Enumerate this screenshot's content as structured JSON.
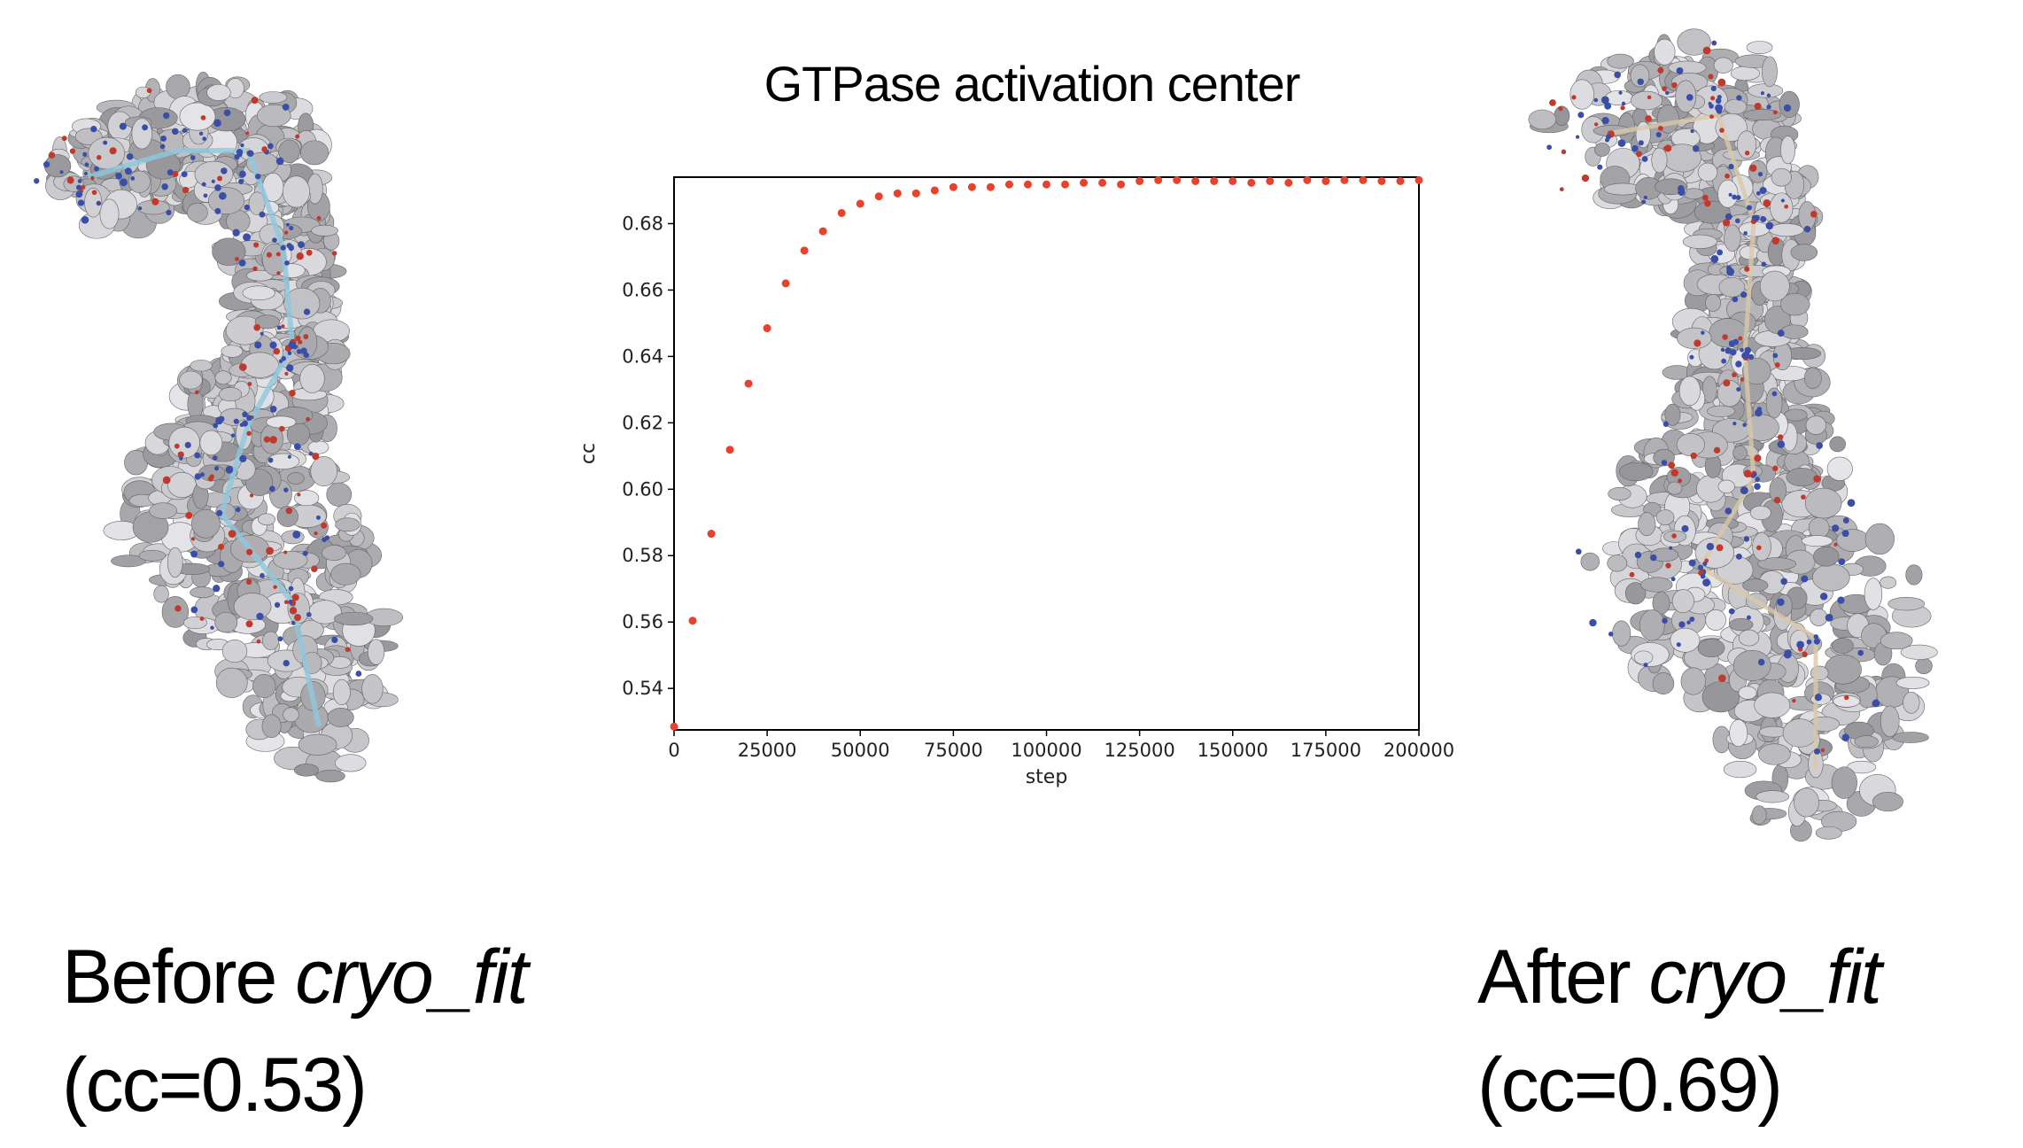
{
  "title": "GTPase activation center",
  "left_panel": {
    "caption_prefix": "Before ",
    "caption_italic": "cryo_fit",
    "cc_label": "(cc=0.53)"
  },
  "right_panel": {
    "caption_prefix": "After ",
    "caption_italic": "cryo_fit",
    "cc_label": "(cc=0.69)"
  },
  "colors": {
    "marker": "#e8412c",
    "map_surface": "#b8b8b8",
    "ribbon_before": "#8ec8de",
    "ribbon_after": "#d8c8a8"
  },
  "chart_data": {
    "type": "scatter",
    "title": "",
    "xlabel": "step",
    "ylabel": "cc",
    "xlim": [
      0,
      200000
    ],
    "ylim": [
      0.5275,
      0.694
    ],
    "xticks": [
      "0",
      "25000",
      "50000",
      "75000",
      "100000",
      "125000",
      "150000",
      "175000",
      "200000"
    ],
    "yticks": [
      "0.54",
      "0.56",
      "0.58",
      "0.60",
      "0.62",
      "0.64",
      "0.66",
      "0.68"
    ],
    "grid": false,
    "x": [
      0,
      5000,
      10000,
      15000,
      20000,
      25000,
      30000,
      35000,
      40000,
      45000,
      50000,
      55000,
      60000,
      65000,
      70000,
      75000,
      80000,
      85000,
      90000,
      95000,
      100000,
      105000,
      110000,
      115000,
      120000,
      125000,
      130000,
      135000,
      140000,
      145000,
      150000,
      155000,
      160000,
      165000,
      170000,
      175000,
      180000,
      185000,
      190000,
      195000,
      200000
    ],
    "y": [
      0.5285,
      0.5604,
      0.5866,
      0.6119,
      0.6318,
      0.6485,
      0.662,
      0.6719,
      0.6777,
      0.6832,
      0.686,
      0.6882,
      0.6891,
      0.6891,
      0.69,
      0.691,
      0.691,
      0.691,
      0.6918,
      0.6918,
      0.6918,
      0.6918,
      0.6923,
      0.6923,
      0.6918,
      0.6928,
      0.6931,
      0.6931,
      0.6928,
      0.6928,
      0.6928,
      0.6923,
      0.6928,
      0.6923,
      0.6931,
      0.6928,
      0.6931,
      0.6931,
      0.6928,
      0.6928,
      0.6931
    ]
  }
}
